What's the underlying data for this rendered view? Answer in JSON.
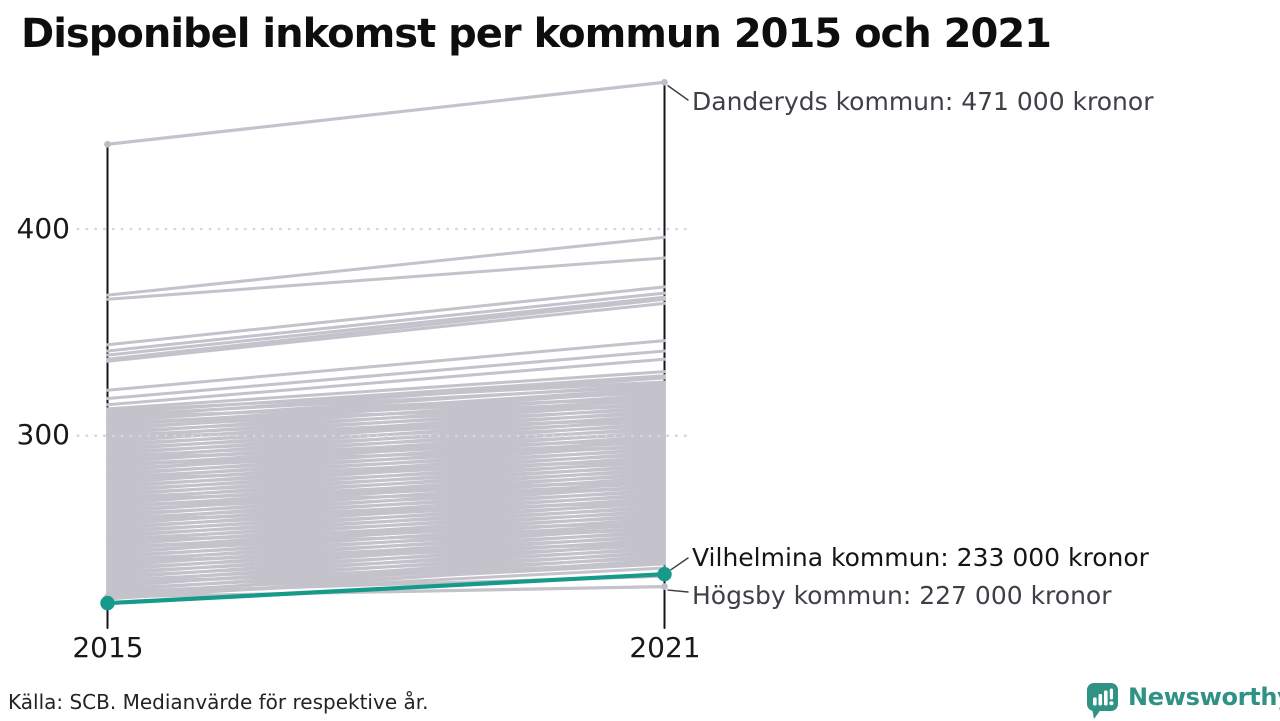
{
  "title": "Disponibel inkomst per kommun 2015 och 2021",
  "axis": {
    "y_ticks": [
      "400",
      "300"
    ],
    "x_ticks": [
      "2015",
      "2021"
    ]
  },
  "annotations": {
    "danderyd": "Danderyds kommun: 471 000 kronor",
    "vilhelmina": "Vilhelmina kommun: 233 000 kronor",
    "hogsby": "Högsby kommun: 227 000 kronor"
  },
  "footer": {
    "source": "Källa: SCB. Medianvärde för respektive år."
  },
  "branding": {
    "name": "Newsworthy",
    "color": "#2f9285"
  },
  "chart_data": {
    "type": "line",
    "subtype": "slopegraph",
    "title": "Disponibel inkomst per kommun 2015 och 2021",
    "x": [
      2015,
      2021
    ],
    "xlabel": "",
    "ylabel": "",
    "y_unit": "tusen kronor",
    "yticks": [
      400,
      300
    ],
    "ylim": [
      215,
      480
    ],
    "grid": "dotted-horizontal",
    "legend": "none",
    "colors": {
      "background_line": "#c4c2cb",
      "highlight": "#169a8a",
      "axis": "#151518",
      "gridline": "#d7d5db",
      "leader": "#3c3c42",
      "endpoint_dot": "#bfbdc8"
    },
    "series": [
      {
        "name": "Danderyds kommun",
        "values": [
          441,
          471
        ],
        "style": "gray-endpoint-dots",
        "label": "Danderyds kommun: 471 000 kronor"
      },
      {
        "name": "Vilhelmina kommun",
        "values": [
          219,
          233
        ],
        "style": "highlight-teal",
        "label": "Vilhelmina kommun: 233 000 kronor"
      },
      {
        "name": "Högsby kommun",
        "values": [
          222,
          227
        ],
        "style": "gray-endpoint-dots",
        "label": "Högsby kommun: 227 000 kronor"
      }
    ],
    "background_series": [
      [
        368,
        396
      ],
      [
        366,
        386
      ],
      [
        344,
        372
      ],
      [
        341,
        369
      ],
      [
        339,
        367
      ],
      [
        337,
        366
      ],
      [
        336,
        364
      ],
      [
        322,
        346
      ],
      [
        318,
        341
      ],
      [
        315,
        337
      ],
      [
        313,
        331
      ],
      [
        311,
        329
      ],
      [
        309,
        328
      ],
      [
        307,
        325
      ],
      [
        305,
        323
      ],
      [
        303,
        322
      ],
      [
        301,
        320
      ],
      [
        299,
        318
      ],
      [
        297,
        316
      ],
      [
        295,
        314
      ],
      [
        293,
        312
      ],
      [
        291,
        310
      ],
      [
        289,
        308
      ],
      [
        287,
        306
      ],
      [
        285,
        304
      ],
      [
        283,
        302
      ],
      [
        281,
        300
      ],
      [
        279,
        298
      ],
      [
        277,
        296
      ],
      [
        275,
        294
      ],
      [
        273,
        292
      ],
      [
        271,
        290
      ],
      [
        269,
        288
      ],
      [
        267,
        286
      ],
      [
        265,
        284
      ],
      [
        263,
        282
      ],
      [
        261,
        280
      ],
      [
        259,
        278
      ],
      [
        257,
        276
      ],
      [
        255,
        274
      ],
      [
        253,
        272
      ],
      [
        251,
        270
      ],
      [
        249,
        268
      ],
      [
        247,
        266
      ],
      [
        245,
        264
      ],
      [
        243,
        262
      ],
      [
        241,
        260
      ],
      [
        239,
        258
      ],
      [
        237,
        256
      ],
      [
        235,
        254
      ],
      [
        233,
        252
      ],
      [
        231,
        250
      ],
      [
        229,
        248
      ],
      [
        227,
        246
      ],
      [
        225,
        244
      ],
      [
        223,
        242
      ],
      [
        221,
        240
      ],
      [
        312,
        326
      ],
      [
        310,
        324
      ],
      [
        308,
        321
      ],
      [
        306,
        319
      ],
      [
        304,
        317
      ],
      [
        302,
        315
      ],
      [
        300,
        313
      ],
      [
        298,
        311
      ],
      [
        296,
        309
      ],
      [
        294,
        307
      ],
      [
        292,
        305
      ],
      [
        290,
        303
      ],
      [
        288,
        301
      ],
      [
        286,
        299
      ],
      [
        284,
        297
      ],
      [
        282,
        295
      ],
      [
        280,
        293
      ],
      [
        278,
        291
      ],
      [
        276,
        289
      ],
      [
        274,
        287
      ],
      [
        272,
        285
      ],
      [
        270,
        283
      ],
      [
        268,
        281
      ],
      [
        266,
        279
      ],
      [
        264,
        277
      ],
      [
        262,
        275
      ],
      [
        260,
        273
      ],
      [
        258,
        271
      ],
      [
        256,
        269
      ],
      [
        254,
        267
      ],
      [
        252,
        265
      ],
      [
        250,
        263
      ],
      [
        248,
        261
      ],
      [
        246,
        259
      ],
      [
        244,
        257
      ],
      [
        242,
        255
      ],
      [
        240,
        253
      ],
      [
        238,
        251
      ],
      [
        236,
        249
      ],
      [
        234,
        247
      ],
      [
        232,
        245
      ],
      [
        230,
        243
      ],
      [
        228,
        241
      ],
      [
        226,
        239
      ],
      [
        224,
        238
      ],
      [
        222,
        236
      ],
      [
        309,
        318
      ],
      [
        299,
        308
      ],
      [
        289,
        298
      ],
      [
        279,
        288
      ],
      [
        269,
        278
      ],
      [
        259,
        268
      ],
      [
        249,
        258
      ],
      [
        239,
        248
      ],
      [
        229,
        238
      ],
      [
        224,
        232
      ],
      [
        246,
        255
      ],
      [
        266,
        275
      ],
      [
        286,
        295
      ],
      [
        306,
        315
      ]
    ]
  }
}
